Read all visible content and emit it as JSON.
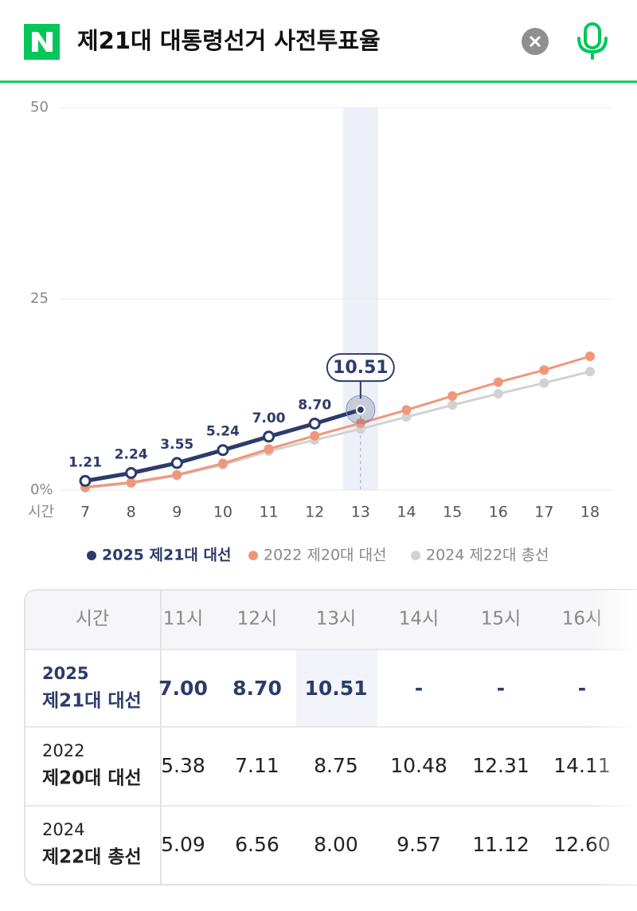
{
  "header": {
    "title": "제21대 대통령선거 사전투표율"
  },
  "chart_data": {
    "type": "line",
    "x_label": "시간",
    "categories": [
      "7",
      "8",
      "9",
      "10",
      "11",
      "12",
      "13",
      "14",
      "15",
      "16",
      "17",
      "18"
    ],
    "series": [
      {
        "name": "2025 제21대 대선",
        "color": "#2d3b6b",
        "values": [
          1.21,
          2.24,
          3.55,
          5.24,
          7.0,
          8.7,
          10.51,
          null,
          null,
          null,
          null,
          null
        ],
        "value_labels": [
          "1.21",
          "2.24",
          "3.55",
          "5.24",
          "7.00",
          "8.70",
          "10.51",
          null,
          null,
          null,
          null,
          null
        ]
      },
      {
        "name": "2022 제20대 대선",
        "color": "#f0977a",
        "values": [
          0.4,
          1.0,
          2.0,
          3.5,
          5.38,
          7.11,
          8.75,
          10.48,
          12.31,
          14.11,
          15.7,
          17.5
        ]
      },
      {
        "name": "2024 제22대 총선",
        "color": "#d2d2d2",
        "values": [
          0.3,
          0.9,
          1.9,
          3.3,
          5.09,
          6.56,
          8.0,
          9.57,
          11.12,
          12.6,
          14.0,
          15.5
        ]
      }
    ],
    "ylim": [
      0,
      50
    ],
    "yticks": [
      {
        "value": 0,
        "label": "0%"
      },
      25,
      50
    ],
    "grid": true
  },
  "table": {
    "header": [
      "시간",
      "11시",
      "12시",
      "13시",
      "14시",
      "15시",
      "16시"
    ],
    "rows": [
      {
        "year": "2025",
        "name": "제21대 대선",
        "cells": [
          "7.00",
          "8.70",
          "10.51",
          "-",
          "-",
          "-"
        ]
      },
      {
        "year": "2022",
        "name": "제20대 대선",
        "cells": [
          "5.38",
          "7.11",
          "8.75",
          "10.48",
          "12.31",
          "14.11"
        ]
      },
      {
        "year": "2024",
        "name": "제22대 총선",
        "cells": [
          "5.09",
          "6.56",
          "8.00",
          "9.57",
          "11.12",
          "12.60"
        ]
      }
    ]
  }
}
